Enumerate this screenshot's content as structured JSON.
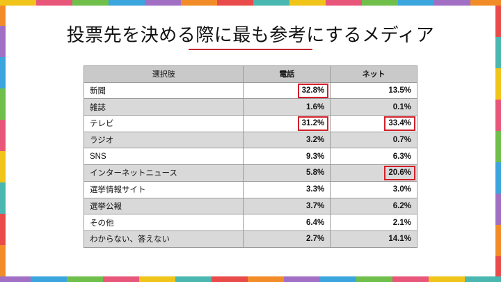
{
  "title": "投票先を決める際に最も参考にするメディア",
  "table": {
    "headers": [
      "選択肢",
      "電話",
      "ネット"
    ],
    "rows": [
      {
        "label": "新聞",
        "phone": "32.8%",
        "net": "13.5%",
        "phone_highlight": true,
        "net_highlight": false
      },
      {
        "label": "雑誌",
        "phone": "1.6%",
        "net": "0.1%",
        "phone_highlight": false,
        "net_highlight": false
      },
      {
        "label": "テレビ",
        "phone": "31.2%",
        "net": "33.4%",
        "phone_highlight": true,
        "net_highlight": true
      },
      {
        "label": "ラジオ",
        "phone": "3.2%",
        "net": "0.7%",
        "phone_highlight": false,
        "net_highlight": false
      },
      {
        "label": "SNS",
        "phone": "9.3%",
        "net": "6.3%",
        "phone_highlight": false,
        "net_highlight": false
      },
      {
        "label": "インターネットニュース",
        "phone": "5.8%",
        "net": "20.6%",
        "phone_highlight": false,
        "net_highlight": true
      },
      {
        "label": "選挙情報サイト",
        "phone": "3.3%",
        "net": "3.0%",
        "phone_highlight": false,
        "net_highlight": false
      },
      {
        "label": "選挙公報",
        "phone": "3.7%",
        "net": "6.2%",
        "phone_highlight": false,
        "net_highlight": false
      },
      {
        "label": "その他",
        "phone": "6.4%",
        "net": "2.1%",
        "phone_highlight": false,
        "net_highlight": false
      },
      {
        "label": "わからない、答えない",
        "phone": "2.7%",
        "net": "14.1%",
        "phone_highlight": false,
        "net_highlight": false
      }
    ]
  },
  "colors": {
    "highlight_border": "#d0202a",
    "title_rule": "#c0272d",
    "frame_palette": [
      "#f0c419",
      "#e8577a",
      "#6fbf4a",
      "#3aa6dd",
      "#a16fc4",
      "#f28c28",
      "#e94b4b",
      "#4ab8b0"
    ]
  }
}
